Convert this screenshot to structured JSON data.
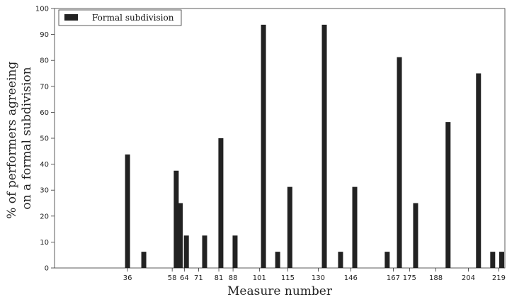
{
  "chart_data": {
    "type": "bar",
    "title": "",
    "xlabel": "Measure number",
    "ylabel": "% of performers agreeing on a formal subdivision",
    "ylabel_lines": [
      "% of performers agreeing",
      "on a formal subdivision"
    ],
    "xlim": [
      0,
      222
    ],
    "ylim": [
      0,
      100
    ],
    "yticks": [
      0,
      10,
      20,
      30,
      40,
      50,
      60,
      70,
      80,
      90,
      100
    ],
    "xticks": [
      36,
      58,
      64,
      71,
      81,
      88,
      101,
      115,
      130,
      146,
      167,
      175,
      188,
      204,
      219
    ],
    "grid": false,
    "legend_position": "top-left",
    "series": [
      {
        "name": "Formal subdivision",
        "color": "#222222",
        "points": [
          {
            "x": 36,
            "y": 43.75
          },
          {
            "x": 44,
            "y": 6.25
          },
          {
            "x": 60,
            "y": 37.5
          },
          {
            "x": 62,
            "y": 25
          },
          {
            "x": 65,
            "y": 12.5
          },
          {
            "x": 74,
            "y": 12.5
          },
          {
            "x": 82,
            "y": 50
          },
          {
            "x": 89,
            "y": 12.5
          },
          {
            "x": 103,
            "y": 93.75
          },
          {
            "x": 110,
            "y": 6.25
          },
          {
            "x": 116,
            "y": 31.25
          },
          {
            "x": 133,
            "y": 93.75
          },
          {
            "x": 141,
            "y": 6.25
          },
          {
            "x": 148,
            "y": 31.25
          },
          {
            "x": 164,
            "y": 6.25
          },
          {
            "x": 170,
            "y": 81.25
          },
          {
            "x": 178,
            "y": 25
          },
          {
            "x": 194,
            "y": 56.25
          },
          {
            "x": 209,
            "y": 75
          },
          {
            "x": 216,
            "y": 6.25
          },
          {
            "x": 224,
            "y": 6.25
          }
        ]
      }
    ]
  }
}
